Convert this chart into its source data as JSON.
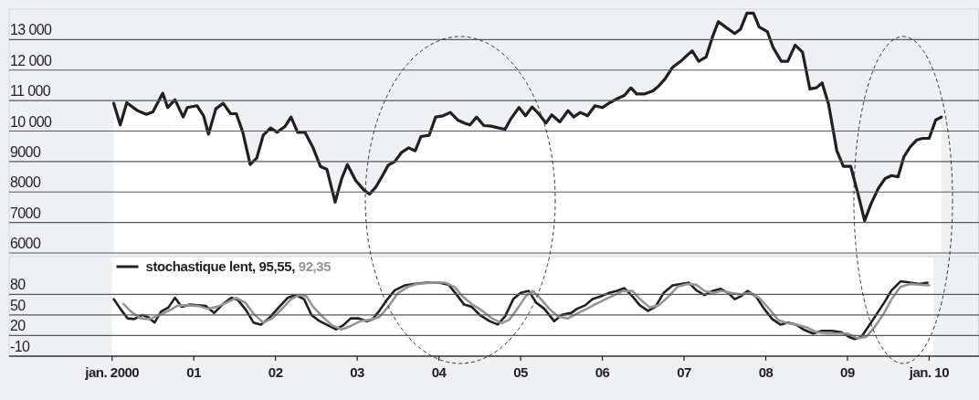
{
  "chart_data": [
    {
      "type": "area",
      "xlim": [
        1998.74,
        2010.61
      ],
      "ylim": [
        6000,
        14000
      ],
      "tick_labels": "y",
      "grid": "y",
      "yticks": [
        {
          "value": 6000,
          "label": "6000"
        },
        {
          "value": 7000,
          "label": "7000"
        },
        {
          "value": 8000,
          "label": "8000"
        },
        {
          "value": 9000,
          "label": "9000"
        },
        {
          "value": 10000,
          "label": "10 000"
        },
        {
          "value": 11000,
          "label": "11 000"
        },
        {
          "value": 12000,
          "label": "12 000"
        },
        {
          "value": 13000,
          "label": "13 000"
        }
      ],
      "series": [
        {
          "color": "#231f20",
          "x": [
            2000.02,
            2000.1,
            2000.18,
            2000.31,
            2000.42,
            2000.5,
            2000.62,
            2000.68,
            2000.77,
            2000.87,
            2000.92,
            2001.04,
            2001.12,
            2001.18,
            2001.27,
            2001.36,
            2001.45,
            2001.52,
            2001.6,
            2001.69,
            2001.77,
            2001.85,
            2001.94,
            2002.02,
            2002.12,
            2002.19,
            2002.27,
            2002.36,
            2002.46,
            2002.55,
            2002.63,
            2002.73,
            2002.81,
            2002.88,
            2002.98,
            2003.08,
            2003.15,
            2003.23,
            2003.31,
            2003.38,
            2003.46,
            2003.54,
            2003.63,
            2003.71,
            2003.78,
            2003.88,
            2003.96,
            2004.05,
            2004.14,
            2004.23,
            2004.31,
            2004.38,
            2004.46,
            2004.55,
            2004.64,
            2004.73,
            2004.81,
            2004.88,
            2004.98,
            2005.06,
            2005.14,
            2005.22,
            2005.31,
            2005.38,
            2005.48,
            2005.58,
            2005.65,
            2005.73,
            2005.82,
            2005.91,
            2006.0,
            2006.09,
            2006.19,
            2006.27,
            2006.35,
            2006.42,
            2006.52,
            2006.62,
            2006.69,
            2006.77,
            2006.86,
            2006.96,
            2007.04,
            2007.1,
            2007.18,
            2007.27,
            2007.35,
            2007.42,
            2007.52,
            2007.62,
            2007.69,
            2007.77,
            2007.85,
            2007.92,
            2008.02,
            2008.09,
            2008.19,
            2008.27,
            2008.36,
            2008.45,
            2008.54,
            2008.62,
            2008.69,
            2008.77,
            2008.87,
            2008.95,
            2009.04,
            2009.13,
            2009.21,
            2009.29,
            2009.38,
            2009.46,
            2009.54,
            2009.62,
            2009.69,
            2009.77,
            2009.85,
            2009.92,
            2010.0,
            2010.08,
            2010.15
          ],
          "values": [
            10910,
            10200,
            10930,
            10670,
            10550,
            10630,
            11240,
            10770,
            11030,
            10460,
            10770,
            10830,
            10500,
            9900,
            10730,
            10910,
            10570,
            10570,
            9960,
            8900,
            9110,
            9860,
            10100,
            9960,
            10160,
            10460,
            9960,
            9960,
            9450,
            8840,
            8740,
            7670,
            8440,
            8900,
            8380,
            8070,
            7930,
            8170,
            8540,
            8880,
            9000,
            9290,
            9450,
            9350,
            9820,
            9860,
            10460,
            10500,
            10610,
            10360,
            10260,
            10200,
            10460,
            10180,
            10160,
            10100,
            10060,
            10400,
            10770,
            10500,
            10790,
            10570,
            10260,
            10530,
            10300,
            10670,
            10460,
            10610,
            10500,
            10830,
            10770,
            10930,
            11070,
            11170,
            11420,
            11220,
            11220,
            11320,
            11480,
            11720,
            12090,
            12290,
            12490,
            12630,
            12290,
            12430,
            13100,
            13590,
            13390,
            13200,
            13340,
            13870,
            13870,
            13410,
            13260,
            12740,
            12290,
            12290,
            12820,
            12590,
            11380,
            11420,
            11580,
            10870,
            9350,
            8840,
            8840,
            7930,
            7060,
            7620,
            8130,
            8440,
            8540,
            8500,
            9150,
            9490,
            9710,
            9760,
            9760,
            10360,
            10460
          ]
        }
      ]
    },
    {
      "type": "line",
      "xlim": [
        1998.74,
        2010.61
      ],
      "ylim": [
        -10,
        135
      ],
      "grid": "y",
      "legend": "top left",
      "xticks": [
        {
          "value": 2000,
          "label": "jan. 2000"
        },
        {
          "value": 2001,
          "label": "01"
        },
        {
          "value": 2002,
          "label": "02"
        },
        {
          "value": 2003,
          "label": "03"
        },
        {
          "value": 2004,
          "label": "04"
        },
        {
          "value": 2005,
          "label": "05"
        },
        {
          "value": 2006,
          "label": "06"
        },
        {
          "value": 2007,
          "label": "07"
        },
        {
          "value": 2008,
          "label": "08"
        },
        {
          "value": 2009,
          "label": "09"
        },
        {
          "value": 2010,
          "label": "jan. 10"
        }
      ],
      "yticks": [
        -10,
        20,
        50,
        80
      ],
      "bands": [
        {
          "axis": "x",
          "from": 2000,
          "to": 2010.05,
          "color": "#ffffff"
        }
      ],
      "series": [
        {
          "name": "stochastique lent, 95,55,",
          "color": "#231f20",
          "x": [
            2000.02,
            2000.12,
            2000.19,
            2000.27,
            2000.37,
            2000.44,
            2000.52,
            2000.6,
            2000.69,
            2000.77,
            2000.85,
            2000.95,
            2001.06,
            2001.15,
            2001.25,
            2001.35,
            2001.46,
            2001.54,
            2001.64,
            2001.73,
            2001.82,
            2001.92,
            2002.04,
            2002.15,
            2002.25,
            2002.35,
            2002.44,
            2002.54,
            2002.64,
            2002.74,
            2002.83,
            2002.92,
            2003.02,
            2003.12,
            2003.19,
            2003.27,
            2003.37,
            2003.46,
            2003.58,
            2003.69,
            2003.85,
            2004.0,
            2004.12,
            2004.22,
            2004.31,
            2004.4,
            2004.5,
            2004.62,
            2004.72,
            2004.81,
            2004.91,
            2005.0,
            2005.1,
            2005.19,
            2005.29,
            2005.41,
            2005.5,
            2005.62,
            2005.69,
            2005.79,
            2005.88,
            2005.98,
            2006.08,
            2006.18,
            2006.27,
            2006.37,
            2006.46,
            2006.56,
            2006.65,
            2006.75,
            2006.86,
            2006.96,
            2007.06,
            2007.15,
            2007.25,
            2007.35,
            2007.45,
            2007.54,
            2007.62,
            2007.69,
            2007.78,
            2007.88,
            2007.98,
            2008.08,
            2008.18,
            2008.27,
            2008.37,
            2008.46,
            2008.58,
            2008.69,
            2008.81,
            2008.92,
            2009.02,
            2009.09,
            2009.17,
            2009.25,
            2009.35,
            2009.45,
            2009.54,
            2009.65,
            2009.77,
            2009.88,
            2009.98
          ],
          "values": [
            73,
            56,
            45,
            44,
            50,
            47,
            39,
            55,
            61,
            75,
            62,
            65,
            64,
            63,
            53,
            65,
            75,
            72,
            57,
            39,
            36,
            45,
            61,
            75,
            79,
            73,
            50,
            41,
            35,
            29,
            35,
            45,
            45,
            41,
            44,
            56,
            73,
            86,
            93,
            95,
            97,
            97,
            94,
            79,
            65,
            62,
            50,
            41,
            36,
            48,
            73,
            82,
            85,
            68,
            59,
            41,
            50,
            53,
            59,
            64,
            73,
            77,
            82,
            85,
            89,
            77,
            64,
            56,
            62,
            82,
            93,
            95,
            97,
            86,
            79,
            85,
            88,
            82,
            73,
            77,
            85,
            77,
            59,
            44,
            36,
            39,
            36,
            29,
            23,
            27,
            27,
            25,
            18,
            15,
            18,
            32,
            50,
            68,
            86,
            99,
            97,
            95,
            97
          ]
        },
        {
          "name": "92,35",
          "color": "#939598",
          "x": [
            2000.14,
            2000.23,
            2000.35,
            2000.46,
            2000.58,
            2000.69,
            2000.81,
            2000.92,
            2001.06,
            2001.17,
            2001.29,
            2001.4,
            2001.52,
            2001.63,
            2001.73,
            2001.85,
            2001.96,
            2002.08,
            2002.19,
            2002.29,
            2002.38,
            2002.46,
            2002.58,
            2002.69,
            2002.81,
            2002.92,
            2003.04,
            2003.15,
            2003.27,
            2003.38,
            2003.5,
            2003.62,
            2003.73,
            2003.92,
            2004.08,
            2004.19,
            2004.29,
            2004.4,
            2004.52,
            2004.65,
            2004.77,
            2004.86,
            2004.96,
            2005.06,
            2005.15,
            2005.25,
            2005.35,
            2005.46,
            2005.58,
            2005.69,
            2005.81,
            2005.92,
            2006.04,
            2006.15,
            2006.25,
            2006.37,
            2006.46,
            2006.58,
            2006.69,
            2006.81,
            2006.92,
            2007.04,
            2007.15,
            2007.25,
            2007.36,
            2007.46,
            2007.58,
            2007.69,
            2007.81,
            2007.92,
            2008.04,
            2008.15,
            2008.27,
            2008.38,
            2008.5,
            2008.62,
            2008.75,
            2008.88,
            2009.0,
            2009.12,
            2009.23,
            2009.33,
            2009.45,
            2009.54,
            2009.65,
            2009.77,
            2009.88,
            2010.0
          ],
          "values": [
            66,
            55,
            45,
            44,
            50,
            56,
            64,
            64,
            63,
            59,
            62,
            68,
            75,
            68,
            52,
            39,
            45,
            59,
            73,
            79,
            77,
            62,
            47,
            35,
            29,
            34,
            41,
            43,
            47,
            62,
            82,
            91,
            95,
            97,
            97,
            91,
            77,
            66,
            57,
            45,
            38,
            43,
            59,
            77,
            85,
            73,
            59,
            48,
            45,
            52,
            59,
            66,
            73,
            79,
            85,
            85,
            73,
            61,
            64,
            77,
            91,
            95,
            94,
            85,
            82,
            85,
            82,
            80,
            82,
            75,
            59,
            43,
            38,
            36,
            32,
            25,
            23,
            23,
            23,
            16,
            18,
            32,
            53,
            73,
            91,
            95,
            94,
            93
          ]
        }
      ]
    }
  ]
}
